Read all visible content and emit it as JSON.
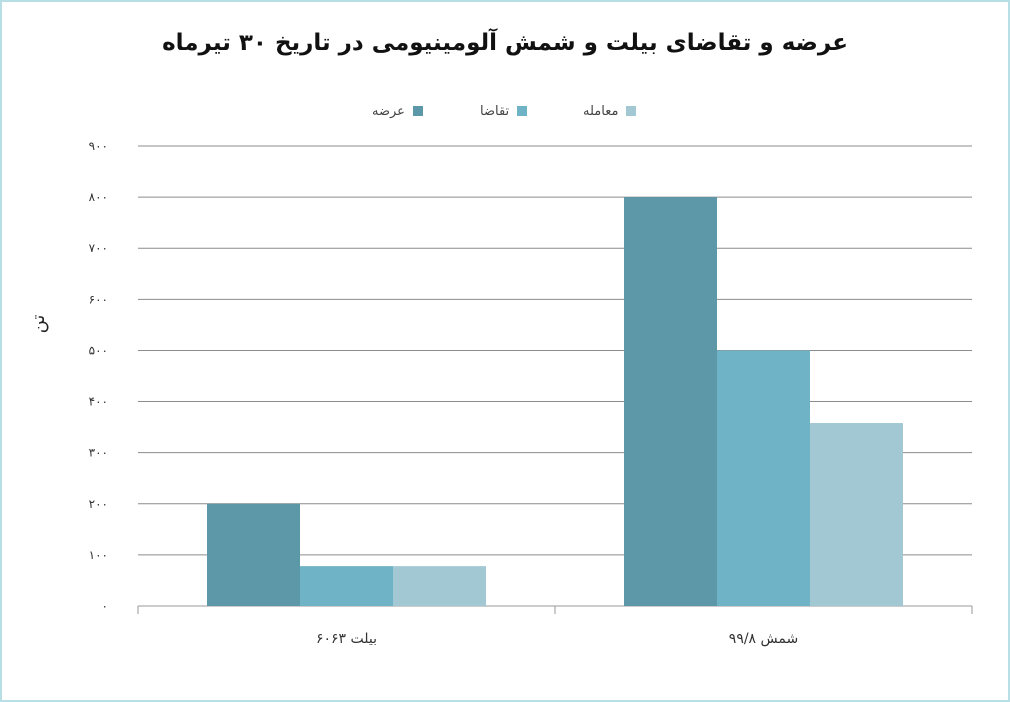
{
  "chart_data": {
    "type": "bar",
    "title": "عرضه و تقاضای بیلت و شمش آلومینیومی در تاریخ ۳۰ تیرماه",
    "ylabel": "تن",
    "categories": [
      "بیلت ۶۰۶۳",
      "شمش ۹۹/۸"
    ],
    "series": [
      {
        "name": "عرضه",
        "values": [
          200,
          800
        ],
        "color": "#5d98a9"
      },
      {
        "name": "تقاضا",
        "values": [
          78,
          500
        ],
        "color": "#6fb3c7"
      },
      {
        "name": "معامله",
        "values": [
          78,
          358
        ],
        "color": "#a2c9d3"
      }
    ],
    "ylim": [
      0,
      900
    ],
    "yticks": [
      {
        "value": 0,
        "label": "۰"
      },
      {
        "value": 100,
        "label": "۱۰۰"
      },
      {
        "value": 200,
        "label": "۲۰۰"
      },
      {
        "value": 300,
        "label": "۳۰۰"
      },
      {
        "value": 400,
        "label": "۴۰۰"
      },
      {
        "value": 500,
        "label": "۵۰۰"
      },
      {
        "value": 600,
        "label": "۶۰۰"
      },
      {
        "value": 700,
        "label": "۷۰۰"
      },
      {
        "value": 800,
        "label": "۸۰۰"
      },
      {
        "value": 900,
        "label": "۹۰۰"
      }
    ],
    "grid": true,
    "legend_position": "top"
  }
}
